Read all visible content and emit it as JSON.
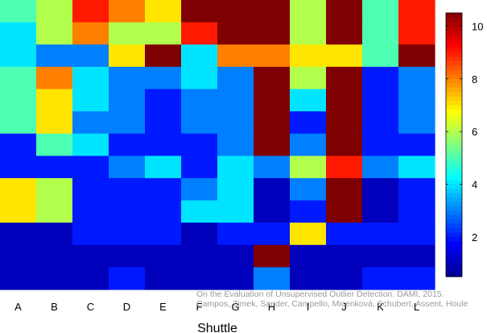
{
  "chart_data": {
    "type": "heatmap",
    "title": "",
    "xlabel": "Shuttle",
    "ylabel": "",
    "x_categories": [
      "A",
      "B",
      "C",
      "D",
      "E",
      "F",
      "G",
      "H",
      "I",
      "J",
      "K",
      "L"
    ],
    "colorbar": {
      "min": 0.5,
      "max": 10.5,
      "ticks": [
        "2",
        "4",
        "6",
        "8",
        "10"
      ],
      "tick_values": [
        2,
        4,
        6,
        8,
        10
      ]
    },
    "colormap": [
      "#00008f",
      "#0000ff",
      "#0060ff",
      "#00bfff",
      "#20ffdf",
      "#80ff7f",
      "#dfff20",
      "#ffbf00",
      "#ff6000",
      "#ff0000",
      "#800000"
    ],
    "cmap_stops": [
      0,
      0.125,
      0.25,
      0.375,
      0.5,
      0.625,
      0.75,
      0.875,
      1.0
    ],
    "cmap_colors": [
      "#00008f",
      "#0000ff",
      "#007fff",
      "#00ffff",
      "#7fff7f",
      "#ffff00",
      "#ff7f00",
      "#ff0000",
      "#7f0000"
    ],
    "rows_count": 13,
    "values": [
      [
        5,
        6,
        9,
        8,
        7,
        10.5,
        10.5,
        10.5,
        6,
        10.5,
        5,
        9
      ],
      [
        4,
        6,
        8,
        6,
        6,
        9,
        10.5,
        10.5,
        6,
        10.5,
        5,
        9
      ],
      [
        4,
        3,
        3,
        7,
        10.5,
        4,
        8,
        8,
        7,
        7,
        5,
        10.5
      ],
      [
        5,
        8,
        4,
        3,
        3,
        4,
        3,
        10.5,
        6,
        10.5,
        2,
        3
      ],
      [
        5,
        7,
        4,
        3,
        2,
        3,
        3,
        10.5,
        4,
        10.5,
        2,
        3
      ],
      [
        5,
        7,
        3,
        3,
        2,
        3,
        3,
        10.5,
        2,
        10.5,
        2,
        3
      ],
      [
        2,
        5,
        4,
        2,
        2,
        2,
        3,
        10.5,
        3,
        10.5,
        2,
        2
      ],
      [
        2,
        2,
        2,
        3,
        4,
        2,
        4,
        3,
        6,
        9,
        3,
        4
      ],
      [
        7,
        6,
        2,
        2,
        2,
        3,
        4,
        1,
        3,
        10.5,
        1,
        2
      ],
      [
        7,
        6,
        2,
        2,
        2,
        4,
        4,
        1,
        2,
        10.5,
        1,
        2
      ],
      [
        1,
        1,
        2,
        2,
        2,
        1,
        2,
        2,
        7,
        2,
        2,
        2
      ],
      [
        1,
        1,
        1,
        1,
        1,
        1,
        1,
        10.5,
        1,
        1,
        1,
        1
      ],
      [
        1,
        1,
        1,
        2,
        1,
        1,
        1,
        3,
        1,
        1,
        2,
        2
      ]
    ]
  },
  "credit": {
    "line1": "On the Evaluation of Unsupervised Outlier Detection. DAMI, 2015.",
    "line2": "Campos, Zimek, Sander, Campello, Micenková, Schubert, Assent, Houle"
  }
}
